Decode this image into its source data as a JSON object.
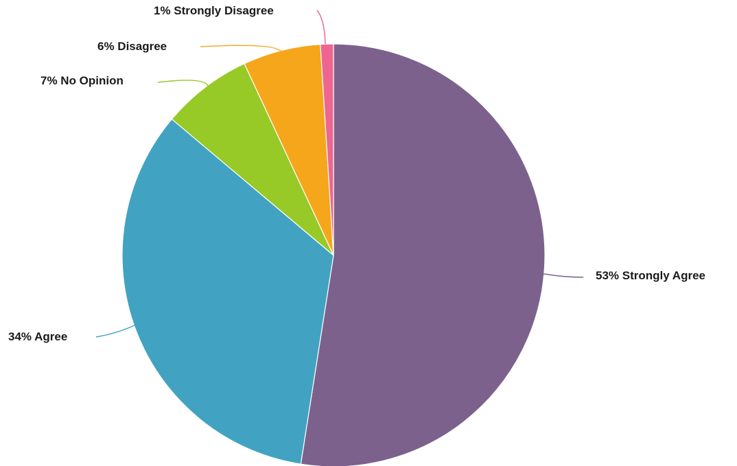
{
  "chart_data": {
    "type": "pie",
    "slices": [
      {
        "label": "53% Strongly Agree",
        "value": 53,
        "color": "#7c618d"
      },
      {
        "label": "34% Agree",
        "value": 34,
        "color": "#41a3c1"
      },
      {
        "label": "7% No Opinion",
        "value": 7,
        "color": "#97c927"
      },
      {
        "label": "6% Disagree",
        "value": 6,
        "color": "#f5a61a"
      },
      {
        "label": "1% Strongly Disagree",
        "value": 1,
        "color": "#ee6690"
      }
    ]
  }
}
